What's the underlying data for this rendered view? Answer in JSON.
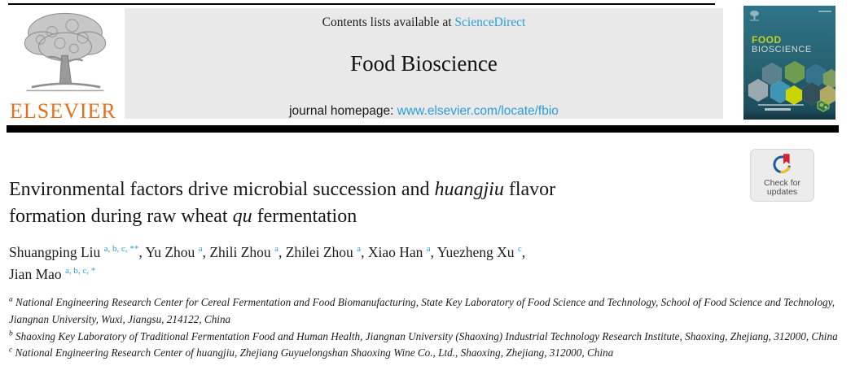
{
  "header": {
    "contents_prefix": "Contents lists available at ",
    "contents_link": "ScienceDirect",
    "journal_title": "Food Bioscience",
    "homepage_prefix": "journal homepage: ",
    "homepage_link": "www.elsevier.com/locate/fbio"
  },
  "publisher": {
    "wordmark": "ELSEVIER"
  },
  "cover": {
    "title_line1": "FOOD",
    "title_line2": "BIOSCIENCE"
  },
  "badge": {
    "line1": "Check for",
    "line2": "updates"
  },
  "article": {
    "title_segments": [
      {
        "text": "Environmental factors drive microbial succession and "
      },
      {
        "text": "huangjiu",
        "italic": true
      },
      {
        "text": " flavor"
      },
      {
        "break": true
      },
      {
        "text": "formation during raw wheat "
      },
      {
        "text": "qu",
        "italic": true
      },
      {
        "text": " fermentation"
      }
    ],
    "authors": [
      {
        "name": "Shuangping Liu",
        "sup": "a, b, c, **"
      },
      {
        "name": "Yu Zhou",
        "sup": "a"
      },
      {
        "name": "Zhili Zhou",
        "sup": "a"
      },
      {
        "name": "Zhilei Zhou",
        "sup": "a"
      },
      {
        "name": "Xiao Han",
        "sup": "a"
      },
      {
        "name": "Yuezheng Xu",
        "sup": "c",
        "break_after": true
      },
      {
        "name": "Jian Mao",
        "sup": "a, b, c, *"
      }
    ],
    "affiliations": [
      {
        "sup": "a",
        "text": "National Engineering Research Center for Cereal Fermentation and Food Biomanufacturing, State Key Laboratory of Food Science and Technology, School of Food Science and Technology, Jiangnan University, Wuxi, Jiangsu, 214122, China"
      },
      {
        "sup": "b",
        "text": "Shaoxing Key Laboratory of Traditional Fermentation Food and Human Health, Jiangnan University (Shaoxing) Industrial Technology Research Institute, Shaoxing, Zhejiang, 312000, China"
      },
      {
        "sup": "c",
        "text": "National Engineering Research Center of huangjiu, Zhejiang Guyuelongshan Shaoxing Wine Co., Ltd., Shaoxing, Zhejiang, 312000, China"
      }
    ]
  },
  "colors": {
    "link": "#2d9fd6",
    "elsevier_orange": "#e4701e",
    "cover_teal": "#26616f",
    "cover_food_yellow": "#c3d021",
    "crossmark_red": "#d5232f",
    "crossmark_blue": "#1a5b9b",
    "crossmark_yellow": "#f3c117"
  }
}
